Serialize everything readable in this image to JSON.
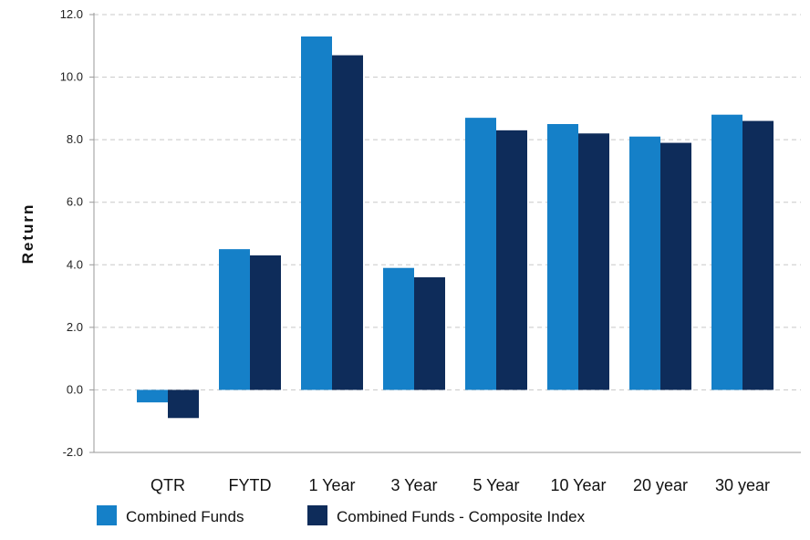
{
  "chart_data": {
    "type": "bar",
    "title": "",
    "xlabel": "",
    "ylabel": "Return",
    "ylim": [
      -2.0,
      12.0
    ],
    "yticks": [
      "-2.0",
      "0.0",
      "2.0",
      "4.0",
      "6.0",
      "8.0",
      "10.0",
      "12.0"
    ],
    "grid": true,
    "legend_position": "bottom-left",
    "categories": [
      "QTR",
      "FYTD",
      "1 Year",
      "3 Year",
      "5 Year",
      "10 Year",
      "20 year",
      "30 year"
    ],
    "series": [
      {
        "name": "Combined Funds",
        "color": "#1580c8",
        "values": [
          -0.4,
          4.5,
          11.3,
          3.9,
          8.7,
          8.5,
          8.1,
          8.8
        ]
      },
      {
        "name": "Combined Funds - Composite Index",
        "color": "#0e2c5a",
        "values": [
          -0.9,
          4.3,
          10.7,
          3.6,
          8.3,
          8.2,
          7.9,
          8.6
        ]
      }
    ]
  }
}
